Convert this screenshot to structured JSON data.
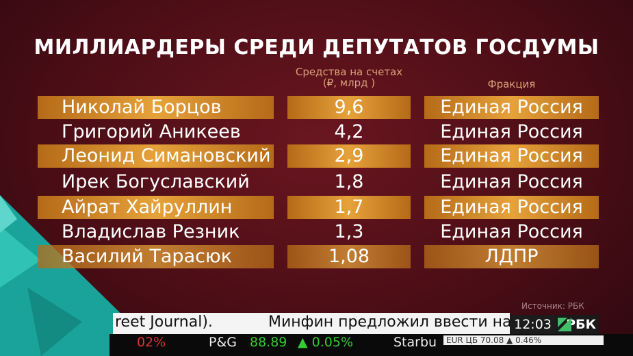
{
  "header": {
    "title": "МИЛЛИАРДЕРЫ СРЕДИ ДЕПУТАТОВ ГОСДУМЫ"
  },
  "table": {
    "columns": [
      "Средства на счетах\n(₽, млрд )",
      "Фракция"
    ],
    "rows": [
      [
        "Николай Борцов",
        "9,6",
        "Единая Россия"
      ],
      [
        "Григорий Аникеев",
        "4,2",
        "Единая Россия"
      ],
      [
        "Леонид Симановский",
        "2,9",
        "Единая Россия"
      ],
      [
        "Ирек Богуславский",
        "1,8",
        "Единая Россия"
      ],
      [
        "Айрат Хайруллин",
        "1,7",
        "Единая Россия"
      ],
      [
        "Владислав Резник",
        "1,3",
        "Единая Россия"
      ],
      [
        "Василий Тарасюк",
        "1,08",
        "ЛДПР"
      ]
    ]
  },
  "source": "Источник: РБК",
  "ticker": {
    "news": [
      "reet Journal).",
      "Минфин предложил ввести на"
    ],
    "quotes": [
      "02%",
      "P&G",
      "88.89",
      "▲ 0.05%",
      "Starbu"
    ],
    "rate": "EUR ЦБ 70.08 ▲ 0.46%",
    "clock": "12:03",
    "logo": "РБК"
  }
}
